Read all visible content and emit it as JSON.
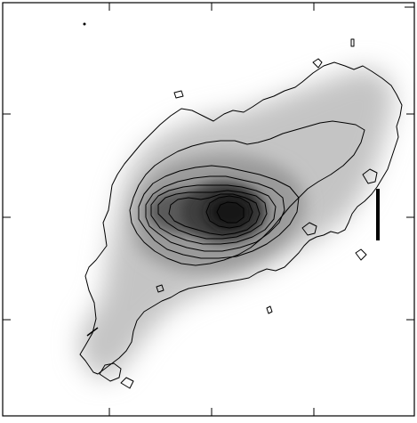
{
  "figure": {
    "colors": {
      "background": "#ffffff",
      "frame": "#000000",
      "contour": "#000000",
      "scale_bar": "#000000",
      "halo": "#c4c4c4",
      "body": "#9a9a9a",
      "core": "#3e3e3e",
      "nucleus": "#141414"
    },
    "contour_levels": 9,
    "axes": {
      "top_ticks": 3,
      "bottom_ticks": 3,
      "left_ticks": 3,
      "right_ticks": 3,
      "tick_labels": "none"
    }
  }
}
